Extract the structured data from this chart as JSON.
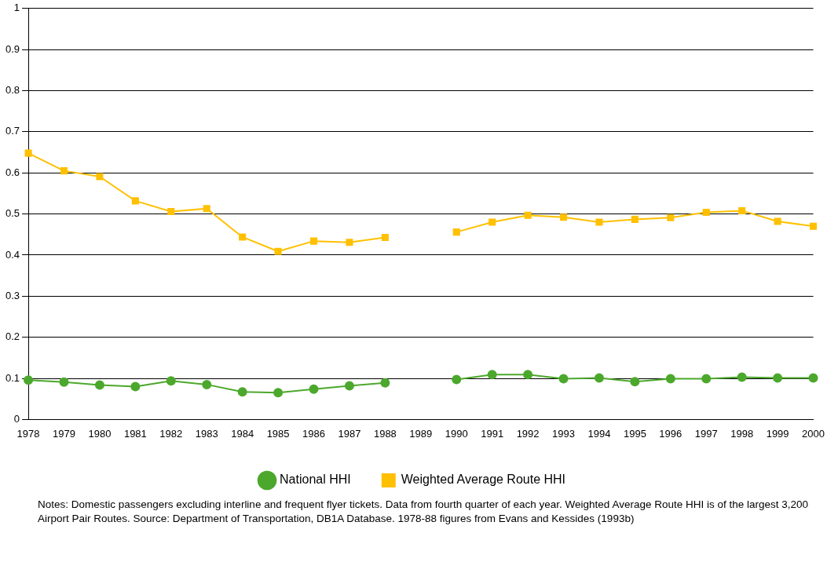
{
  "chart_data": {
    "type": "line",
    "categories": [
      "1978",
      "1979",
      "1980",
      "1981",
      "1982",
      "1983",
      "1984",
      "1985",
      "1986",
      "1987",
      "1988",
      "1989",
      "1990",
      "1991",
      "1992",
      "1993",
      "1994",
      "1995",
      "1996",
      "1997",
      "1998",
      "1999",
      "2000"
    ],
    "series": [
      {
        "name": "National HHI",
        "color": "#4ca82c",
        "marker": "circle",
        "values": [
          0.096,
          0.091,
          0.084,
          0.08,
          0.094,
          0.085,
          0.067,
          0.065,
          0.074,
          0.082,
          0.089,
          null,
          0.097,
          0.109,
          0.109,
          0.099,
          0.101,
          0.092,
          0.099,
          0.099,
          0.103,
          0.101,
          0.101
        ]
      },
      {
        "name": "Weighted Average Route HHI",
        "color": "#ffc000",
        "marker": "square",
        "values": [
          0.648,
          0.605,
          0.591,
          0.532,
          0.506,
          0.513,
          0.444,
          0.409,
          0.434,
          0.431,
          0.443,
          null,
          0.456,
          0.48,
          0.497,
          0.492,
          0.48,
          0.487,
          0.491,
          0.504,
          0.508,
          0.482,
          0.47
        ]
      }
    ],
    "ylim": [
      0,
      1
    ],
    "yticks": [
      0,
      0.1,
      0.2,
      0.3,
      0.4,
      0.5,
      0.6,
      0.7,
      0.8,
      0.9,
      1
    ],
    "grid": "y",
    "legend": "bottom",
    "annotations": [
      "Notes: Domestic passengers excluding interline and frequent flyer tickets.  Data from fourth quarter of each year.  Weighted Average Route HHI is of the largest 3,200 Airport Pair Routes.  Source:  Department of Transportation, DB1A Database.  1978-88 figures from Evans and Kessides (1993b)"
    ]
  }
}
